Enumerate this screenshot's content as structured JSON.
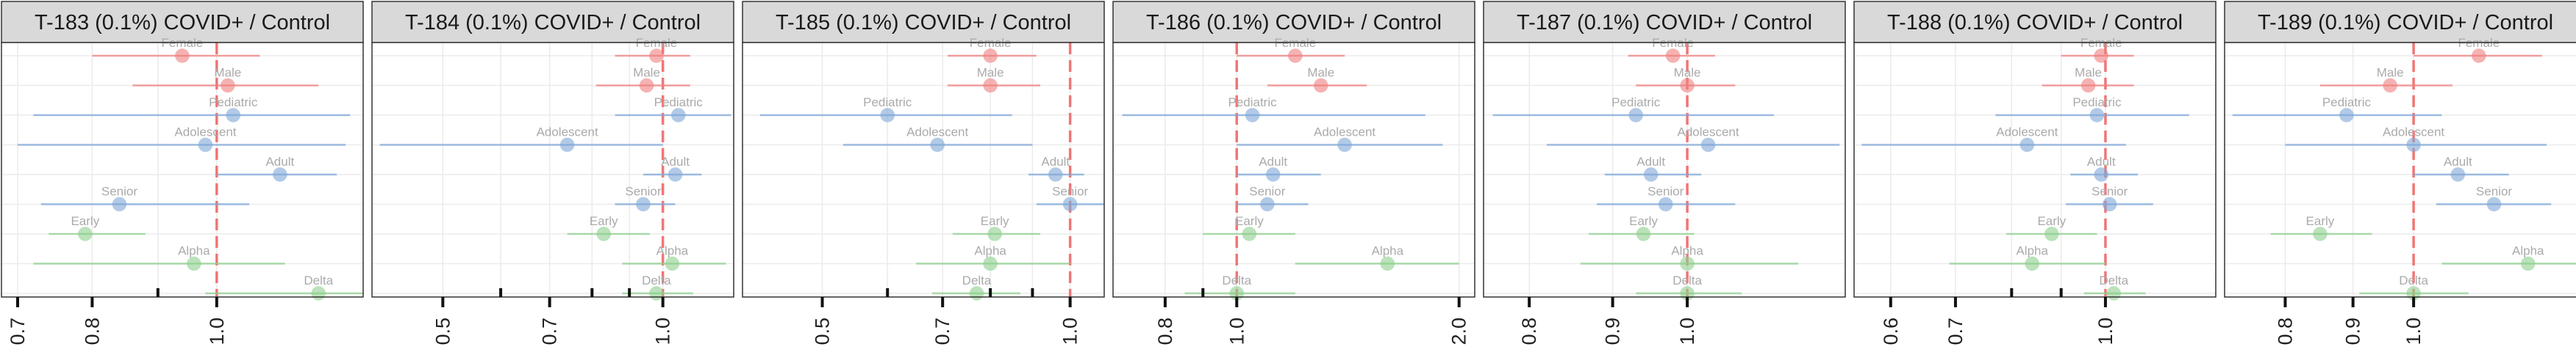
{
  "chart_data": [
    {
      "type": "forest",
      "title": "T-183 (0.1%) COVID+ / Control",
      "scale": "log",
      "reference_value": 1.0,
      "xlim": [
        0.68,
        1.3
      ],
      "ticks": [
        0.7,
        0.8,
        1.0
      ],
      "tick_labels": [
        "0.7",
        "0.8",
        "1.0"
      ],
      "minor_ticks": [
        0.9
      ],
      "rows": [
        {
          "label": "Female",
          "group": "sex",
          "estimate": 0.94,
          "lower": 0.8,
          "upper": 1.08
        },
        {
          "label": "Male",
          "group": "sex",
          "estimate": 1.02,
          "lower": 0.86,
          "upper": 1.2
        },
        {
          "label": "Pediatric",
          "group": "age",
          "estimate": 1.03,
          "lower": 0.72,
          "upper": 1.27
        },
        {
          "label": "Adolescent",
          "group": "age",
          "estimate": 0.98,
          "lower": 0.7,
          "upper": 1.26
        },
        {
          "label": "Adult",
          "group": "age",
          "estimate": 1.12,
          "lower": 1.0,
          "upper": 1.24
        },
        {
          "label": "Senior",
          "group": "age",
          "estimate": 0.84,
          "lower": 0.73,
          "upper": 1.06
        },
        {
          "label": "Early",
          "group": "variant",
          "estimate": 0.79,
          "lower": 0.74,
          "upper": 0.88
        },
        {
          "label": "Alpha",
          "group": "variant",
          "estimate": 0.96,
          "lower": 0.72,
          "upper": 1.13
        },
        {
          "label": "Delta",
          "group": "variant",
          "estimate": 1.2,
          "lower": 0.98,
          "upper": 1.3
        }
      ]
    },
    {
      "type": "forest",
      "title": "T-184 (0.1%) COVID+ / Control",
      "scale": "log",
      "reference_value": 1.0,
      "xlim": [
        0.4,
        1.25
      ],
      "ticks": [
        0.5,
        0.7,
        1.0
      ],
      "tick_labels": [
        "0.5",
        "0.7",
        "1.0"
      ],
      "minor_ticks": [
        0.6,
        0.8,
        0.9
      ],
      "rows": [
        {
          "label": "Female",
          "group": "sex",
          "estimate": 0.98,
          "lower": 0.86,
          "upper": 1.09
        },
        {
          "label": "Male",
          "group": "sex",
          "estimate": 0.95,
          "lower": 0.81,
          "upper": 1.09
        },
        {
          "label": "Pediatric",
          "group": "age",
          "estimate": 1.05,
          "lower": 0.86,
          "upper": 1.24
        },
        {
          "label": "Adolescent",
          "group": "age",
          "estimate": 0.74,
          "lower": 0.41,
          "upper": 1.0
        },
        {
          "label": "Adult",
          "group": "age",
          "estimate": 1.04,
          "lower": 0.94,
          "upper": 1.13
        },
        {
          "label": "Senior",
          "group": "age",
          "estimate": 0.94,
          "lower": 0.86,
          "upper": 1.04
        },
        {
          "label": "Early",
          "group": "variant",
          "estimate": 0.83,
          "lower": 0.74,
          "upper": 0.96
        },
        {
          "label": "Alpha",
          "group": "variant",
          "estimate": 1.03,
          "lower": 0.88,
          "upper": 1.22
        },
        {
          "label": "Delta",
          "group": "variant",
          "estimate": 0.98,
          "lower": 0.88,
          "upper": 1.1
        }
      ]
    },
    {
      "type": "forest",
      "title": "T-185 (0.1%) COVID+ / Control",
      "scale": "log",
      "reference_value": 1.0,
      "xlim": [
        0.4,
        1.1
      ],
      "ticks": [
        0.5,
        0.7,
        1.0
      ],
      "tick_labels": [
        "0.5",
        "0.7",
        "1.0"
      ],
      "minor_ticks": [
        0.6,
        0.8,
        0.9
      ],
      "rows": [
        {
          "label": "Female",
          "group": "sex",
          "estimate": 0.8,
          "lower": 0.71,
          "upper": 0.91
        },
        {
          "label": "Male",
          "group": "sex",
          "estimate": 0.8,
          "lower": 0.71,
          "upper": 0.92
        },
        {
          "label": "Pediatric",
          "group": "age",
          "estimate": 0.6,
          "lower": 0.42,
          "upper": 0.85
        },
        {
          "label": "Adolescent",
          "group": "age",
          "estimate": 0.69,
          "lower": 0.53,
          "upper": 0.9
        },
        {
          "label": "Adult",
          "group": "age",
          "estimate": 0.96,
          "lower": 0.89,
          "upper": 1.04
        },
        {
          "label": "Senior",
          "group": "age",
          "estimate": 1.0,
          "lower": 0.91,
          "upper": 1.1
        },
        {
          "label": "Early",
          "group": "variant",
          "estimate": 0.81,
          "lower": 0.72,
          "upper": 0.92
        },
        {
          "label": "Alpha",
          "group": "variant",
          "estimate": 0.8,
          "lower": 0.65,
          "upper": 1.0
        },
        {
          "label": "Delta",
          "group": "variant",
          "estimate": 0.77,
          "lower": 0.68,
          "upper": 0.87
        }
      ]
    },
    {
      "type": "forest",
      "title": "T-186 (0.1%) COVID+ / Control",
      "scale": "log",
      "reference_value": 1.0,
      "xlim": [
        0.68,
        2.1
      ],
      "ticks": [
        0.8,
        1.0,
        2.0
      ],
      "tick_labels": [
        "0.8",
        "1.0",
        "2.0"
      ],
      "minor_ticks": [
        0.9
      ],
      "rows": [
        {
          "label": "Female",
          "group": "sex",
          "estimate": 1.2,
          "lower": 1.0,
          "upper": 1.4
        },
        {
          "label": "Male",
          "group": "sex",
          "estimate": 1.3,
          "lower": 1.1,
          "upper": 1.5
        },
        {
          "label": "Pediatric",
          "group": "age",
          "estimate": 1.05,
          "lower": 0.7,
          "upper": 1.8
        },
        {
          "label": "Adolescent",
          "group": "age",
          "estimate": 1.4,
          "lower": 1.0,
          "upper": 1.9
        },
        {
          "label": "Adult",
          "group": "age",
          "estimate": 1.12,
          "lower": 1.0,
          "upper": 1.3
        },
        {
          "label": "Senior",
          "group": "age",
          "estimate": 1.1,
          "lower": 1.0,
          "upper": 1.25
        },
        {
          "label": "Early",
          "group": "variant",
          "estimate": 1.04,
          "lower": 0.9,
          "upper": 1.2
        },
        {
          "label": "Alpha",
          "group": "variant",
          "estimate": 1.6,
          "lower": 1.2,
          "upper": 2.0
        },
        {
          "label": "Delta",
          "group": "variant",
          "estimate": 1.0,
          "lower": 0.85,
          "upper": 1.2
        }
      ]
    },
    {
      "type": "forest",
      "title": "T-187 (0.1%) COVID+ / Control",
      "scale": "log",
      "reference_value": 1.0,
      "xlim": [
        0.75,
        1.25
      ],
      "ticks": [
        0.8,
        0.9,
        1.0
      ],
      "tick_labels": [
        "0.8",
        "0.9",
        "1.0"
      ],
      "minor_ticks": [],
      "rows": [
        {
          "label": "Female",
          "group": "sex",
          "estimate": 0.98,
          "lower": 0.92,
          "upper": 1.04
        },
        {
          "label": "Male",
          "group": "sex",
          "estimate": 1.0,
          "lower": 0.93,
          "upper": 1.07
        },
        {
          "label": "Pediatric",
          "group": "age",
          "estimate": 0.93,
          "lower": 0.76,
          "upper": 1.13
        },
        {
          "label": "Adolescent",
          "group": "age",
          "estimate": 1.03,
          "lower": 0.82,
          "upper": 1.24
        },
        {
          "label": "Adult",
          "group": "age",
          "estimate": 0.95,
          "lower": 0.89,
          "upper": 1.02
        },
        {
          "label": "Senior",
          "group": "age",
          "estimate": 0.97,
          "lower": 0.88,
          "upper": 1.07
        },
        {
          "label": "Early",
          "group": "variant",
          "estimate": 0.94,
          "lower": 0.87,
          "upper": 1.01
        },
        {
          "label": "Alpha",
          "group": "variant",
          "estimate": 1.0,
          "lower": 0.86,
          "upper": 1.17
        },
        {
          "label": "Delta",
          "group": "variant",
          "estimate": 1.0,
          "lower": 0.93,
          "upper": 1.08
        }
      ]
    },
    {
      "type": "forest",
      "title": "T-188 (0.1%) COVID+ / Control",
      "scale": "log",
      "reference_value": 1.0,
      "xlim": [
        0.55,
        1.3
      ],
      "ticks": [
        0.6,
        0.7,
        1.0
      ],
      "tick_labels": [
        "0.6",
        "0.7",
        "1.0"
      ],
      "minor_ticks": [
        0.8,
        0.9
      ],
      "rows": [
        {
          "label": "Female",
          "group": "sex",
          "estimate": 0.99,
          "lower": 0.9,
          "upper": 1.07
        },
        {
          "label": "Male",
          "group": "sex",
          "estimate": 0.96,
          "lower": 0.86,
          "upper": 1.07
        },
        {
          "label": "Pediatric",
          "group": "age",
          "estimate": 0.98,
          "lower": 0.77,
          "upper": 1.22
        },
        {
          "label": "Adolescent",
          "group": "age",
          "estimate": 0.83,
          "lower": 0.56,
          "upper": 1.05
        },
        {
          "label": "Adult",
          "group": "age",
          "estimate": 0.99,
          "lower": 0.92,
          "upper": 1.08
        },
        {
          "label": "Senior",
          "group": "age",
          "estimate": 1.01,
          "lower": 0.91,
          "upper": 1.12
        },
        {
          "label": "Early",
          "group": "variant",
          "estimate": 0.88,
          "lower": 0.79,
          "upper": 0.98
        },
        {
          "label": "Alpha",
          "group": "variant",
          "estimate": 0.84,
          "lower": 0.69,
          "upper": 1.0
        },
        {
          "label": "Delta",
          "group": "variant",
          "estimate": 1.02,
          "lower": 0.95,
          "upper": 1.1
        }
      ]
    },
    {
      "type": "forest",
      "title": "T-189 (0.1%) COVID+ / Control",
      "scale": "log",
      "reference_value": 1.0,
      "xlim": [
        0.72,
        1.35
      ],
      "ticks": [
        0.8,
        0.9,
        1.0
      ],
      "tick_labels": [
        "0.8",
        "0.9",
        "1.0"
      ],
      "minor_ticks": [],
      "rows": [
        {
          "label": "Female",
          "group": "sex",
          "estimate": 1.12,
          "lower": 1.0,
          "upper": 1.25
        },
        {
          "label": "Male",
          "group": "sex",
          "estimate": 0.96,
          "lower": 0.85,
          "upper": 1.07
        },
        {
          "label": "Pediatric",
          "group": "age",
          "estimate": 0.89,
          "lower": 0.73,
          "upper": 1.05
        },
        {
          "label": "Adolescent",
          "group": "age",
          "estimate": 1.0,
          "lower": 0.8,
          "upper": 1.26
        },
        {
          "label": "Adult",
          "group": "age",
          "estimate": 1.08,
          "lower": 1.0,
          "upper": 1.18
        },
        {
          "label": "Senior",
          "group": "age",
          "estimate": 1.15,
          "lower": 1.04,
          "upper": 1.27
        },
        {
          "label": "Early",
          "group": "variant",
          "estimate": 0.85,
          "lower": 0.78,
          "upper": 0.93
        },
        {
          "label": "Alpha",
          "group": "variant",
          "estimate": 1.22,
          "lower": 1.05,
          "upper": 1.35
        },
        {
          "label": "Delta",
          "group": "variant",
          "estimate": 1.0,
          "lower": 0.91,
          "upper": 1.1
        }
      ]
    }
  ],
  "colors": {
    "sex": "#f08080",
    "age": "#7fa8d8",
    "variant": "#8fd08f",
    "reference_line": "#f06060",
    "strip_background": "#d9d9d9",
    "grid": "#ebebeb",
    "panel_border": "#333333",
    "row_label": "#aaaaaa",
    "axis_text": "#222222"
  }
}
